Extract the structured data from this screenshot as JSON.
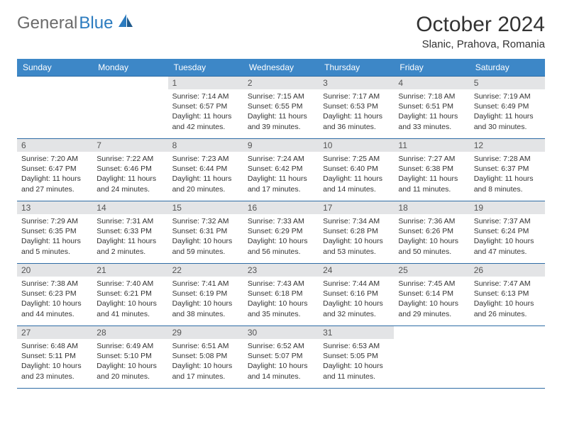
{
  "logo": {
    "word1": "General",
    "word2": "Blue"
  },
  "title": "October 2024",
  "location": "Slanic, Prahova, Romania",
  "colors": {
    "header_bg": "#3d87c7",
    "header_text": "#ffffff",
    "daynum_bg": "#e3e4e6",
    "border": "#2e6ca5",
    "logo_grey": "#6b6b6b",
    "logo_blue": "#2b7bbf",
    "text": "#333333",
    "background": "#ffffff"
  },
  "weekdays": [
    "Sunday",
    "Monday",
    "Tuesday",
    "Wednesday",
    "Thursday",
    "Friday",
    "Saturday"
  ],
  "weeks": [
    [
      null,
      null,
      {
        "n": "1",
        "sr": "7:14 AM",
        "ss": "6:57 PM",
        "dl": "11 hours and 42 minutes."
      },
      {
        "n": "2",
        "sr": "7:15 AM",
        "ss": "6:55 PM",
        "dl": "11 hours and 39 minutes."
      },
      {
        "n": "3",
        "sr": "7:17 AM",
        "ss": "6:53 PM",
        "dl": "11 hours and 36 minutes."
      },
      {
        "n": "4",
        "sr": "7:18 AM",
        "ss": "6:51 PM",
        "dl": "11 hours and 33 minutes."
      },
      {
        "n": "5",
        "sr": "7:19 AM",
        "ss": "6:49 PM",
        "dl": "11 hours and 30 minutes."
      }
    ],
    [
      {
        "n": "6",
        "sr": "7:20 AM",
        "ss": "6:47 PM",
        "dl": "11 hours and 27 minutes."
      },
      {
        "n": "7",
        "sr": "7:22 AM",
        "ss": "6:46 PM",
        "dl": "11 hours and 24 minutes."
      },
      {
        "n": "8",
        "sr": "7:23 AM",
        "ss": "6:44 PM",
        "dl": "11 hours and 20 minutes."
      },
      {
        "n": "9",
        "sr": "7:24 AM",
        "ss": "6:42 PM",
        "dl": "11 hours and 17 minutes."
      },
      {
        "n": "10",
        "sr": "7:25 AM",
        "ss": "6:40 PM",
        "dl": "11 hours and 14 minutes."
      },
      {
        "n": "11",
        "sr": "7:27 AM",
        "ss": "6:38 PM",
        "dl": "11 hours and 11 minutes."
      },
      {
        "n": "12",
        "sr": "7:28 AM",
        "ss": "6:37 PM",
        "dl": "11 hours and 8 minutes."
      }
    ],
    [
      {
        "n": "13",
        "sr": "7:29 AM",
        "ss": "6:35 PM",
        "dl": "11 hours and 5 minutes."
      },
      {
        "n": "14",
        "sr": "7:31 AM",
        "ss": "6:33 PM",
        "dl": "11 hours and 2 minutes."
      },
      {
        "n": "15",
        "sr": "7:32 AM",
        "ss": "6:31 PM",
        "dl": "10 hours and 59 minutes."
      },
      {
        "n": "16",
        "sr": "7:33 AM",
        "ss": "6:29 PM",
        "dl": "10 hours and 56 minutes."
      },
      {
        "n": "17",
        "sr": "7:34 AM",
        "ss": "6:28 PM",
        "dl": "10 hours and 53 minutes."
      },
      {
        "n": "18",
        "sr": "7:36 AM",
        "ss": "6:26 PM",
        "dl": "10 hours and 50 minutes."
      },
      {
        "n": "19",
        "sr": "7:37 AM",
        "ss": "6:24 PM",
        "dl": "10 hours and 47 minutes."
      }
    ],
    [
      {
        "n": "20",
        "sr": "7:38 AM",
        "ss": "6:23 PM",
        "dl": "10 hours and 44 minutes."
      },
      {
        "n": "21",
        "sr": "7:40 AM",
        "ss": "6:21 PM",
        "dl": "10 hours and 41 minutes."
      },
      {
        "n": "22",
        "sr": "7:41 AM",
        "ss": "6:19 PM",
        "dl": "10 hours and 38 minutes."
      },
      {
        "n": "23",
        "sr": "7:43 AM",
        "ss": "6:18 PM",
        "dl": "10 hours and 35 minutes."
      },
      {
        "n": "24",
        "sr": "7:44 AM",
        "ss": "6:16 PM",
        "dl": "10 hours and 32 minutes."
      },
      {
        "n": "25",
        "sr": "7:45 AM",
        "ss": "6:14 PM",
        "dl": "10 hours and 29 minutes."
      },
      {
        "n": "26",
        "sr": "7:47 AM",
        "ss": "6:13 PM",
        "dl": "10 hours and 26 minutes."
      }
    ],
    [
      {
        "n": "27",
        "sr": "6:48 AM",
        "ss": "5:11 PM",
        "dl": "10 hours and 23 minutes."
      },
      {
        "n": "28",
        "sr": "6:49 AM",
        "ss": "5:10 PM",
        "dl": "10 hours and 20 minutes."
      },
      {
        "n": "29",
        "sr": "6:51 AM",
        "ss": "5:08 PM",
        "dl": "10 hours and 17 minutes."
      },
      {
        "n": "30",
        "sr": "6:52 AM",
        "ss": "5:07 PM",
        "dl": "10 hours and 14 minutes."
      },
      {
        "n": "31",
        "sr": "6:53 AM",
        "ss": "5:05 PM",
        "dl": "10 hours and 11 minutes."
      },
      null,
      null
    ]
  ],
  "labels": {
    "sunrise": "Sunrise:",
    "sunset": "Sunset:",
    "daylight": "Daylight:"
  }
}
